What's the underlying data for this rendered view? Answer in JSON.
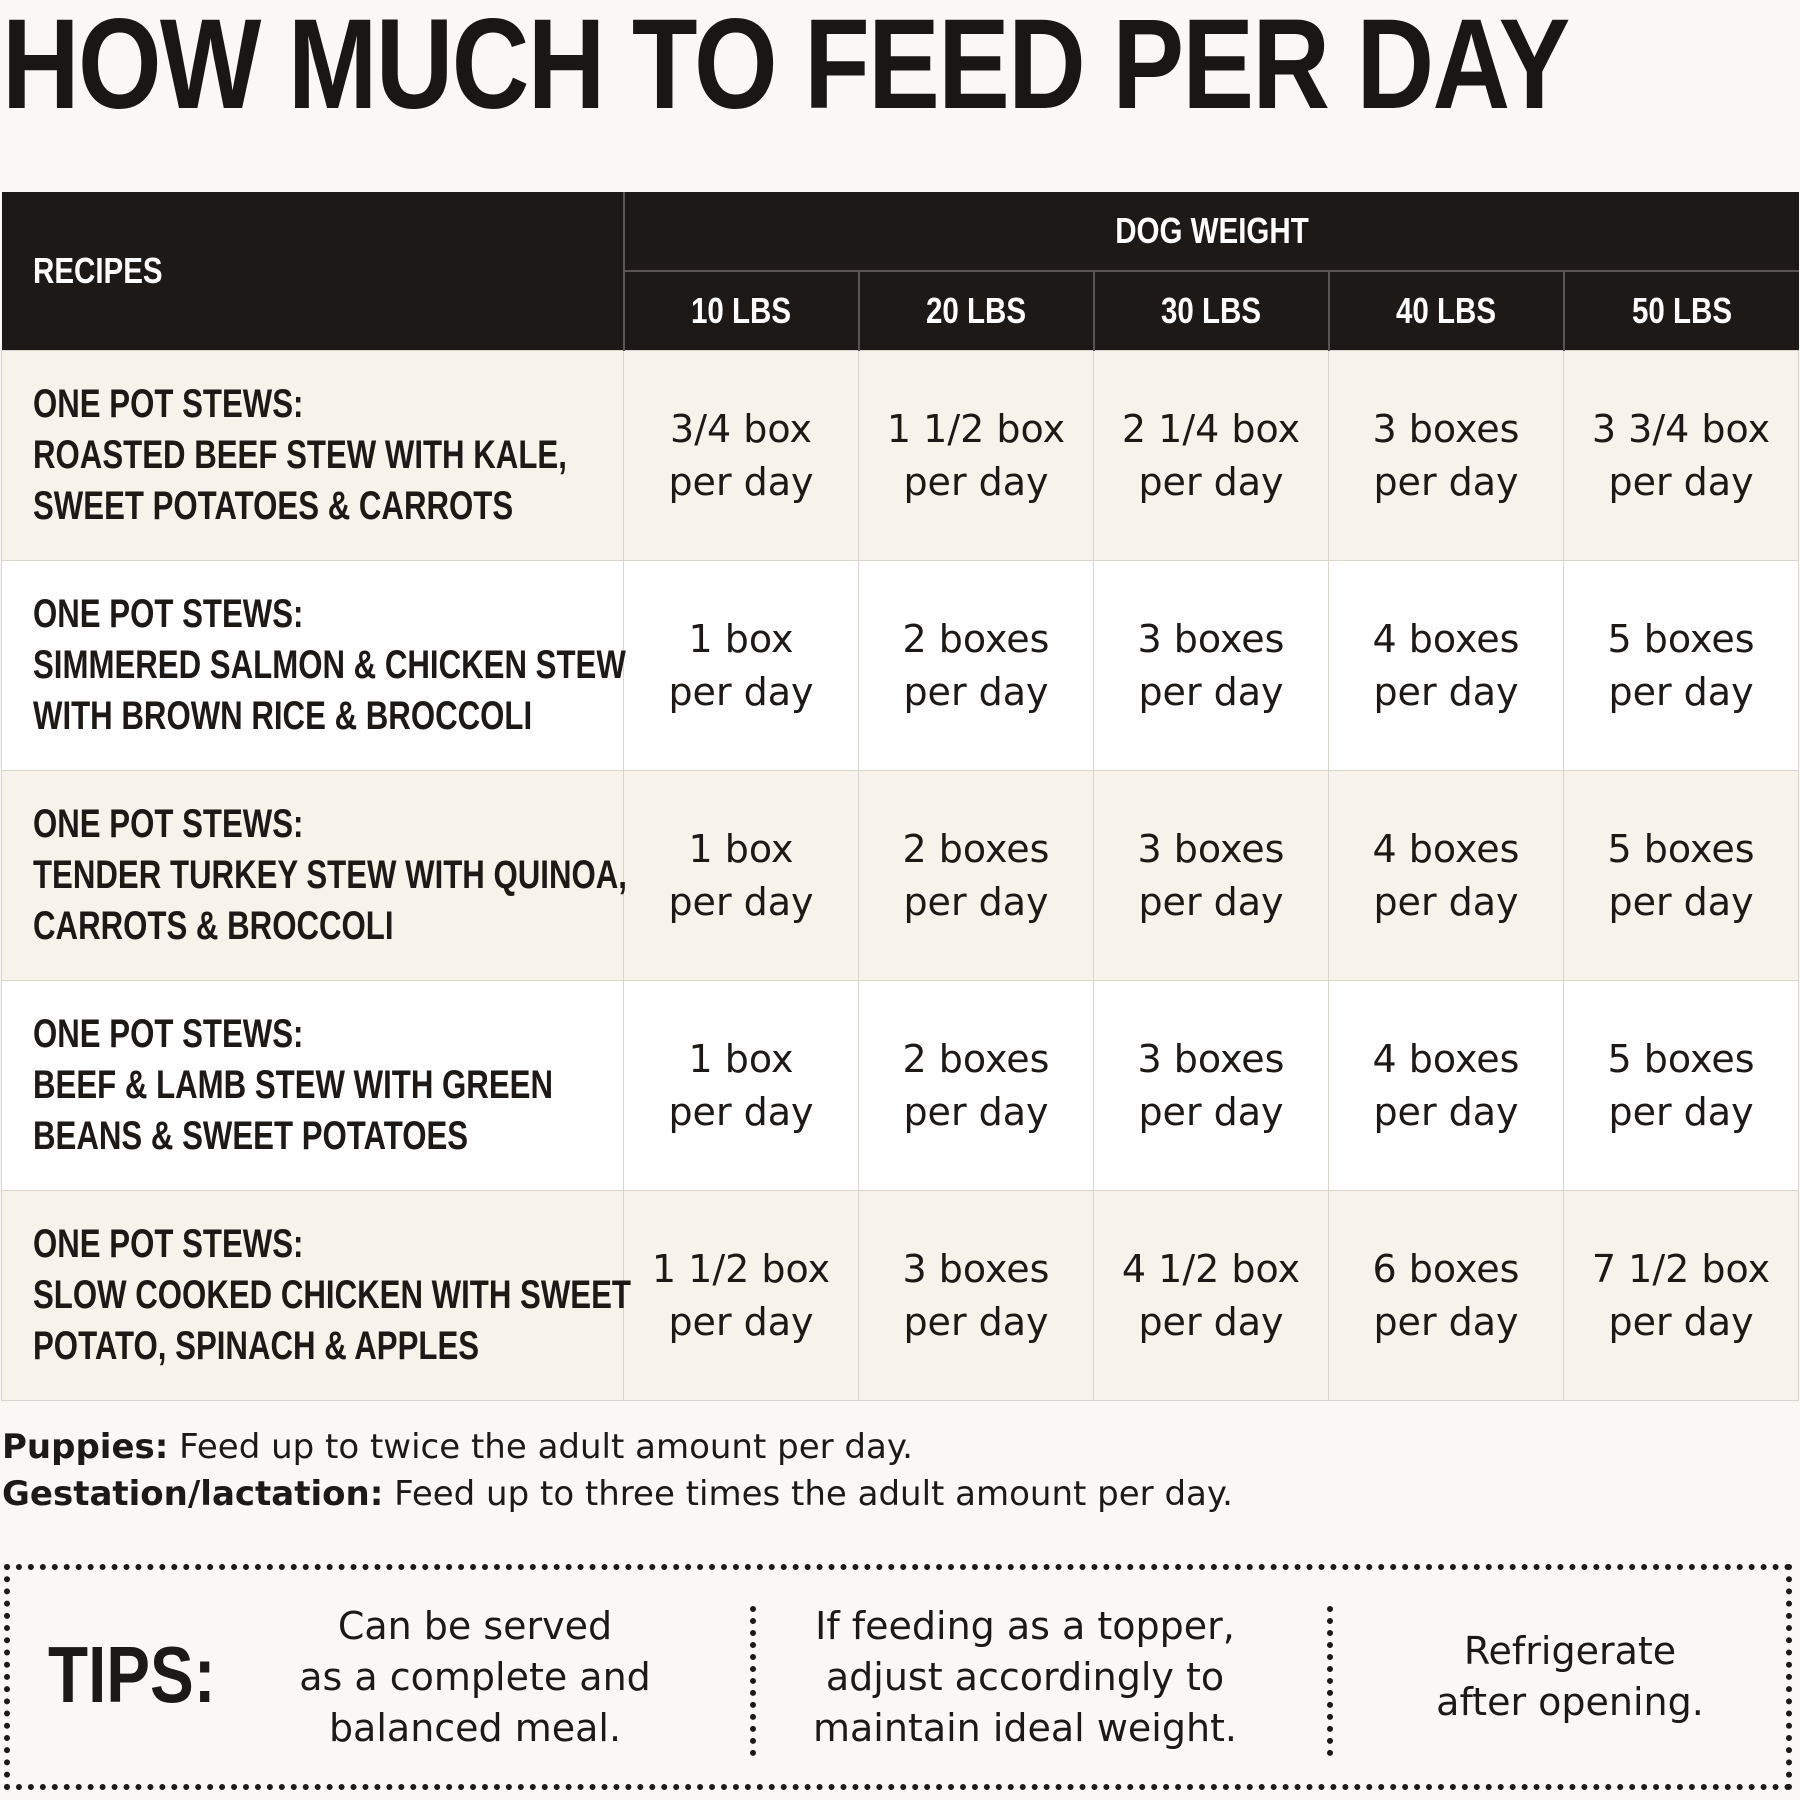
{
  "title": "HOW MUCH TO FEED PER DAY",
  "table": {
    "recipes_header": "RECIPES",
    "weight_header": "DOG WEIGHT",
    "weights": [
      "10 LBS",
      "20 LBS",
      "30 LBS",
      "40 LBS",
      "50 LBS"
    ],
    "rows": [
      {
        "recipe": [
          "ONE POT STEWS:",
          "ROASTED BEEF STEW WITH KALE,",
          "SWEET POTATOES & CARROTS"
        ],
        "amounts": [
          [
            "3/4 box",
            "per day"
          ],
          [
            "1 1/2 box",
            "per day"
          ],
          [
            "2 1/4 box",
            "per day"
          ],
          [
            "3 boxes",
            "per day"
          ],
          [
            "3 3/4 box",
            "per day"
          ]
        ]
      },
      {
        "recipe": [
          "ONE POT STEWS:",
          "SIMMERED SALMON & CHICKEN STEW",
          "WITH BROWN RICE & BROCCOLI"
        ],
        "amounts": [
          [
            "1 box",
            "per day"
          ],
          [
            "2 boxes",
            "per day"
          ],
          [
            "3 boxes",
            "per day"
          ],
          [
            "4 boxes",
            "per day"
          ],
          [
            "5 boxes",
            "per day"
          ]
        ]
      },
      {
        "recipe": [
          "ONE POT STEWS:",
          "TENDER TURKEY STEW WITH QUINOA,",
          "CARROTS & BROCCOLI"
        ],
        "amounts": [
          [
            "1 box",
            "per day"
          ],
          [
            "2 boxes",
            "per day"
          ],
          [
            "3 boxes",
            "per day"
          ],
          [
            "4 boxes",
            "per day"
          ],
          [
            "5 boxes",
            "per day"
          ]
        ]
      },
      {
        "recipe": [
          "ONE POT STEWS:",
          "BEEF & LAMB STEW WITH GREEN",
          "BEANS & SWEET POTATOES"
        ],
        "amounts": [
          [
            "1 box",
            "per day"
          ],
          [
            "2 boxes",
            "per day"
          ],
          [
            "3 boxes",
            "per day"
          ],
          [
            "4 boxes",
            "per day"
          ],
          [
            "5 boxes",
            "per day"
          ]
        ]
      },
      {
        "recipe": [
          "ONE POT STEWS:",
          "SLOW COOKED CHICKEN WITH SWEET",
          "POTATO, SPINACH & APPLES"
        ],
        "amounts": [
          [
            "1 1/2 box",
            "per day"
          ],
          [
            "3 boxes",
            "per day"
          ],
          [
            "4 1/2 box",
            "per day"
          ],
          [
            "6 boxes",
            "per day"
          ],
          [
            "7 1/2 box",
            "per day"
          ]
        ]
      }
    ]
  },
  "notes": {
    "puppies_label": "Puppies:",
    "puppies_text": " Feed up to twice the adult amount per day.",
    "gestation_label": "Gestation/lactation:",
    "gestation_text": " Feed up to three times the adult amount per day."
  },
  "tips": {
    "label": "TIPS:",
    "items": [
      [
        "Can be served",
        "as a complete and",
        "balanced meal."
      ],
      [
        "If feeding as a topper,",
        "adjust accordingly to",
        "maintain ideal weight."
      ],
      [
        "Refrigerate",
        "after opening."
      ]
    ]
  }
}
